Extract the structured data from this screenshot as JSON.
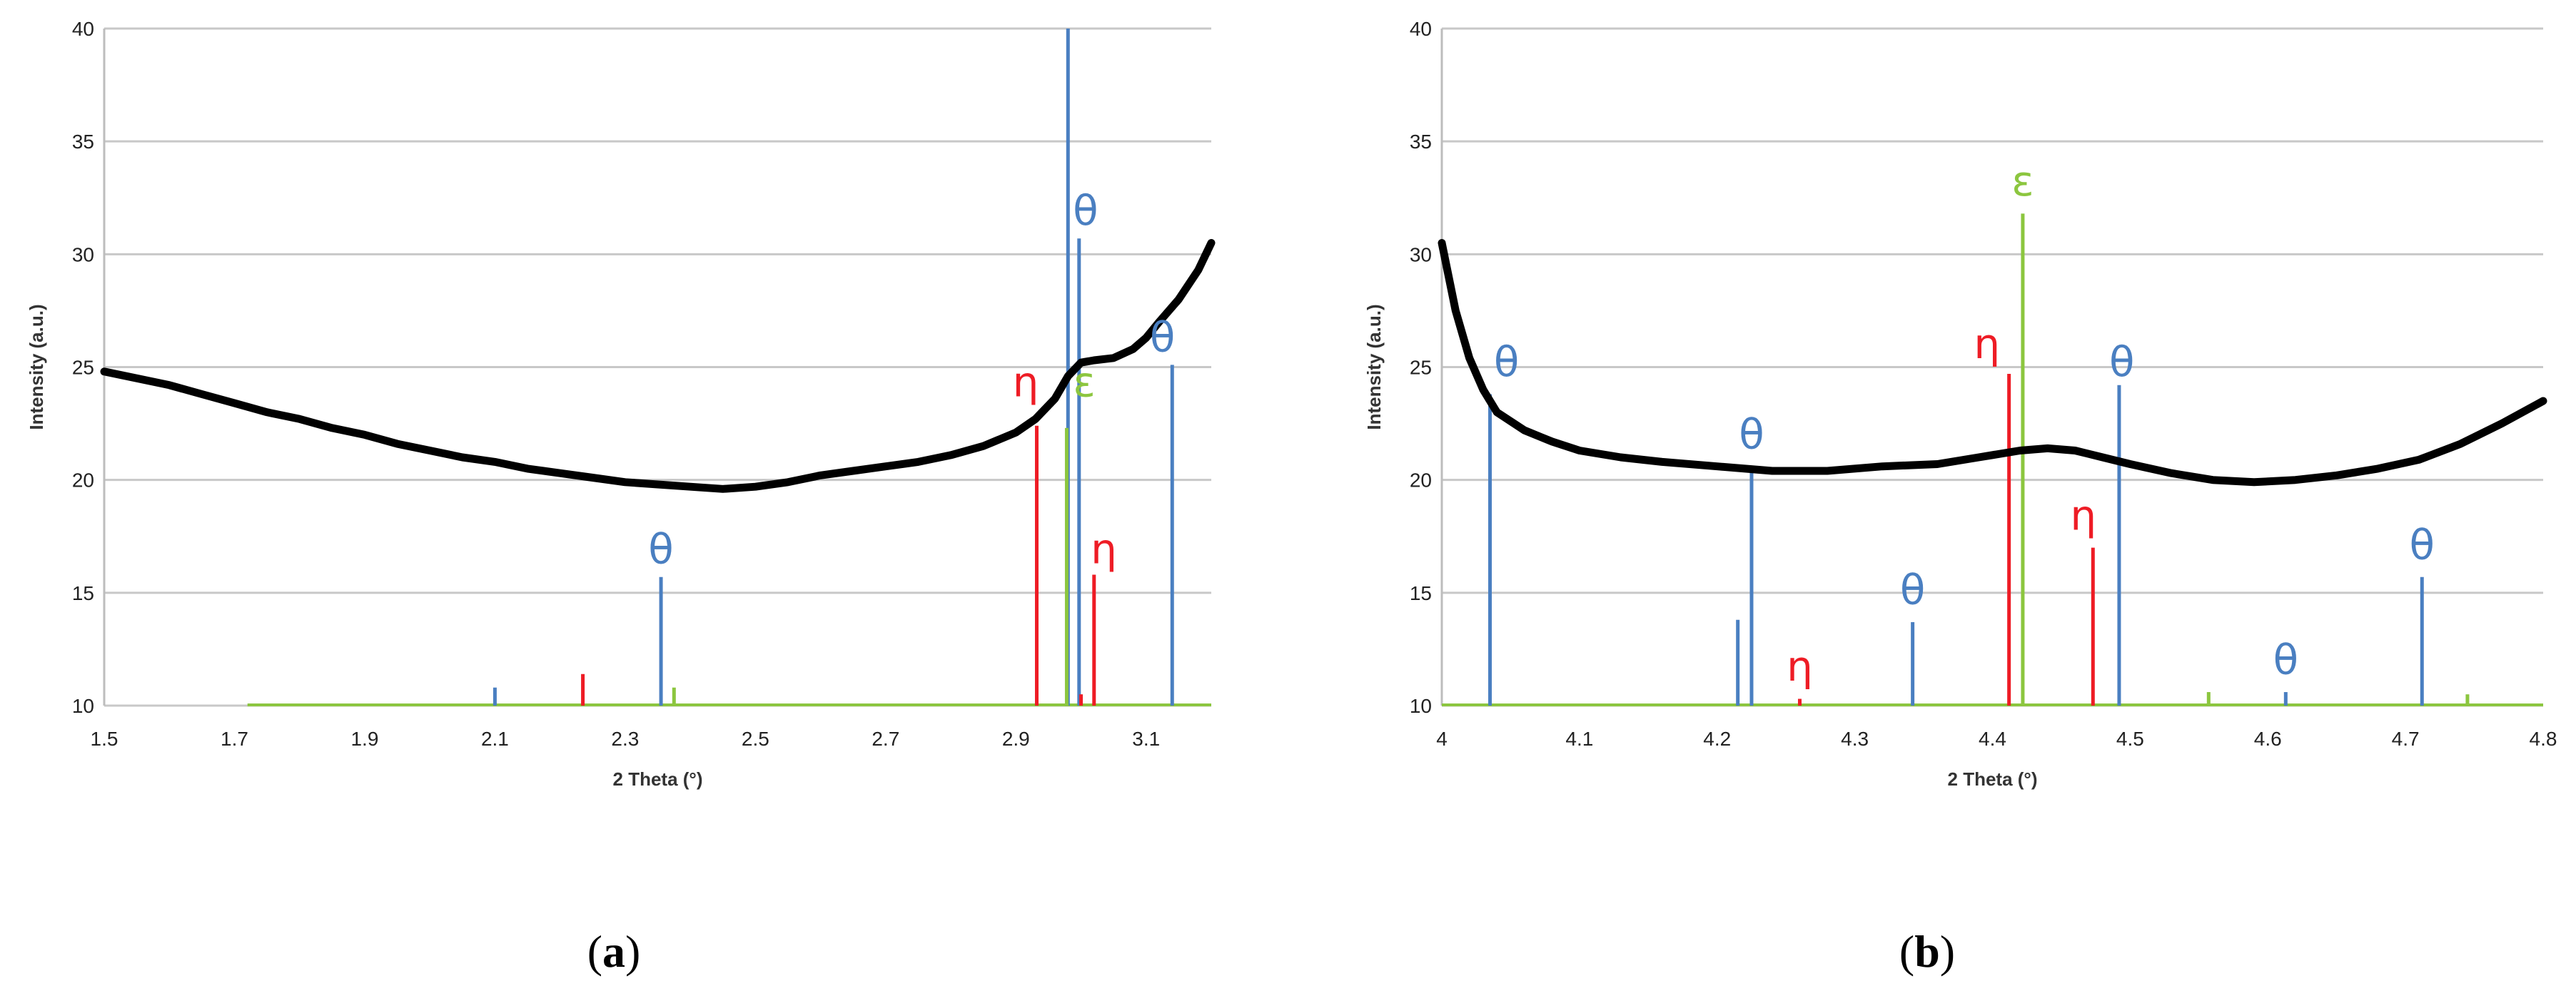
{
  "colors": {
    "theta": "#4a7fc1",
    "eta": "#ee1c25",
    "epsilon": "#8cc63f",
    "curve": "#000000",
    "grid": "#c8c8c8"
  },
  "chart_data": [
    {
      "type": "line",
      "panel_label": "a",
      "xlabel": "2 Theta (°)",
      "ylabel": "Intensity (a.u.)",
      "xlim": [
        1.5,
        3.2
      ],
      "ylim": [
        10,
        40
      ],
      "xticks": [
        1.5,
        1.7,
        1.9,
        2.1,
        2.3,
        2.5,
        2.7,
        2.9,
        3.1
      ],
      "yticks": [
        10,
        15,
        20,
        25,
        30,
        35,
        40
      ],
      "grid": true,
      "baseline": {
        "color": "epsilon",
        "x_start": 1.72,
        "x_end": 3.2
      },
      "series": [
        {
          "style": "curve",
          "x": [
            1.5,
            1.55,
            1.6,
            1.65,
            1.7,
            1.75,
            1.8,
            1.85,
            1.9,
            1.95,
            2.0,
            2.05,
            2.1,
            2.15,
            2.2,
            2.25,
            2.3,
            2.35,
            2.4,
            2.45,
            2.5,
            2.55,
            2.6,
            2.65,
            2.7,
            2.75,
            2.8,
            2.85,
            2.9,
            2.93,
            2.96,
            2.98,
            3.0,
            3.02,
            3.05,
            3.08,
            3.1,
            3.12,
            3.15,
            3.18,
            3.2
          ],
          "y": [
            24.8,
            24.5,
            24.2,
            23.8,
            23.4,
            23.0,
            22.7,
            22.3,
            22.0,
            21.6,
            21.3,
            21.0,
            20.8,
            20.5,
            20.3,
            20.1,
            19.9,
            19.8,
            19.7,
            19.6,
            19.7,
            19.9,
            20.2,
            20.4,
            20.6,
            20.8,
            21.1,
            21.5,
            22.1,
            22.7,
            23.6,
            24.6,
            25.2,
            25.3,
            25.4,
            25.8,
            26.3,
            27.0,
            28.0,
            29.3,
            30.5
          ]
        },
        {
          "style": "sticks",
          "phase": "theta",
          "x": [
            2.1,
            2.355,
            2.98,
            2.997,
            3.14
          ],
          "y": [
            10.8,
            15.7,
            40.0,
            30.7,
            25.1
          ]
        },
        {
          "style": "sticks",
          "phase": "eta",
          "x": [
            2.235,
            2.932,
            3.0,
            3.02
          ],
          "y": [
            11.4,
            22.4,
            10.5,
            15.8
          ]
        },
        {
          "style": "sticks",
          "phase": "epsilon",
          "x": [
            2.375,
            2.978
          ],
          "y": [
            10.8,
            22.3
          ]
        }
      ],
      "annotations": [
        {
          "text": "θ",
          "phase": "theta",
          "x": 2.355,
          "y": 16.3
        },
        {
          "text": "θ",
          "phase": "theta",
          "x": 3.007,
          "y": 31.3
        },
        {
          "text": "θ",
          "phase": "theta",
          "x": 3.125,
          "y": 25.7
        },
        {
          "text": "η",
          "phase": "eta",
          "x": 2.915,
          "y": 23.7
        },
        {
          "text": "η",
          "phase": "eta",
          "x": 3.035,
          "y": 16.3
        },
        {
          "text": "ε",
          "phase": "epsilon",
          "x": 3.005,
          "y": 23.7
        }
      ]
    },
    {
      "type": "line",
      "panel_label": "b",
      "xlabel": "2 Theta (°)",
      "ylabel": "Intensity (a.u.)",
      "xlim": [
        4.0,
        4.8
      ],
      "ylim": [
        10,
        40
      ],
      "xticks": [
        4.0,
        4.1,
        4.2,
        4.3,
        4.4,
        4.5,
        4.6,
        4.7,
        4.8
      ],
      "xtick_labels": [
        "4",
        "4.1",
        "4.2",
        "4.3",
        "4.4",
        "4.5",
        "4.6",
        "4.7",
        "4.8"
      ],
      "yticks": [
        10,
        15,
        20,
        25,
        30,
        35,
        40
      ],
      "grid": true,
      "baseline": {
        "color": "epsilon",
        "x_start": 4.0,
        "x_end": 4.8
      },
      "series": [
        {
          "style": "curve",
          "x": [
            4.0,
            4.01,
            4.02,
            4.03,
            4.04,
            4.06,
            4.08,
            4.1,
            4.13,
            4.16,
            4.2,
            4.24,
            4.28,
            4.32,
            4.36,
            4.39,
            4.42,
            4.44,
            4.46,
            4.48,
            4.5,
            4.53,
            4.56,
            4.59,
            4.62,
            4.65,
            4.68,
            4.71,
            4.74,
            4.77,
            4.8
          ],
          "y": [
            30.5,
            27.5,
            25.4,
            24.0,
            23.0,
            22.2,
            21.7,
            21.3,
            21.0,
            20.8,
            20.6,
            20.4,
            20.4,
            20.6,
            20.7,
            21.0,
            21.3,
            21.4,
            21.3,
            21.0,
            20.7,
            20.3,
            20.0,
            19.9,
            20.0,
            20.2,
            20.5,
            20.9,
            21.6,
            22.5,
            23.5
          ]
        },
        {
          "style": "sticks",
          "phase": "theta",
          "x": [
            4.035,
            4.215,
            4.225,
            4.342,
            4.492,
            4.613,
            4.712
          ],
          "y": [
            23.8,
            13.8,
            20.6,
            13.7,
            24.2,
            10.6,
            15.7
          ]
        },
        {
          "style": "sticks",
          "phase": "eta",
          "x": [
            4.26,
            4.412,
            4.473
          ],
          "y": [
            10.3,
            24.7,
            17.0
          ]
        },
        {
          "style": "sticks",
          "phase": "epsilon",
          "x": [
            4.422,
            4.557,
            4.745
          ],
          "y": [
            31.8,
            10.6,
            10.5
          ]
        }
      ],
      "annotations": [
        {
          "text": "θ",
          "phase": "theta",
          "x": 4.047,
          "y": 24.6
        },
        {
          "text": "θ",
          "phase": "theta",
          "x": 4.225,
          "y": 21.4
        },
        {
          "text": "θ",
          "phase": "theta",
          "x": 4.342,
          "y": 14.5
        },
        {
          "text": "θ",
          "phase": "theta",
          "x": 4.494,
          "y": 24.6
        },
        {
          "text": "θ",
          "phase": "theta",
          "x": 4.613,
          "y": 11.4
        },
        {
          "text": "θ",
          "phase": "theta",
          "x": 4.712,
          "y": 16.5
        },
        {
          "text": "η",
          "phase": "eta",
          "x": 4.26,
          "y": 11.1
        },
        {
          "text": "η",
          "phase": "eta",
          "x": 4.396,
          "y": 25.4
        },
        {
          "text": "η",
          "phase": "eta",
          "x": 4.466,
          "y": 17.8
        },
        {
          "text": "ε",
          "phase": "epsilon",
          "x": 4.422,
          "y": 32.6
        }
      ]
    }
  ]
}
